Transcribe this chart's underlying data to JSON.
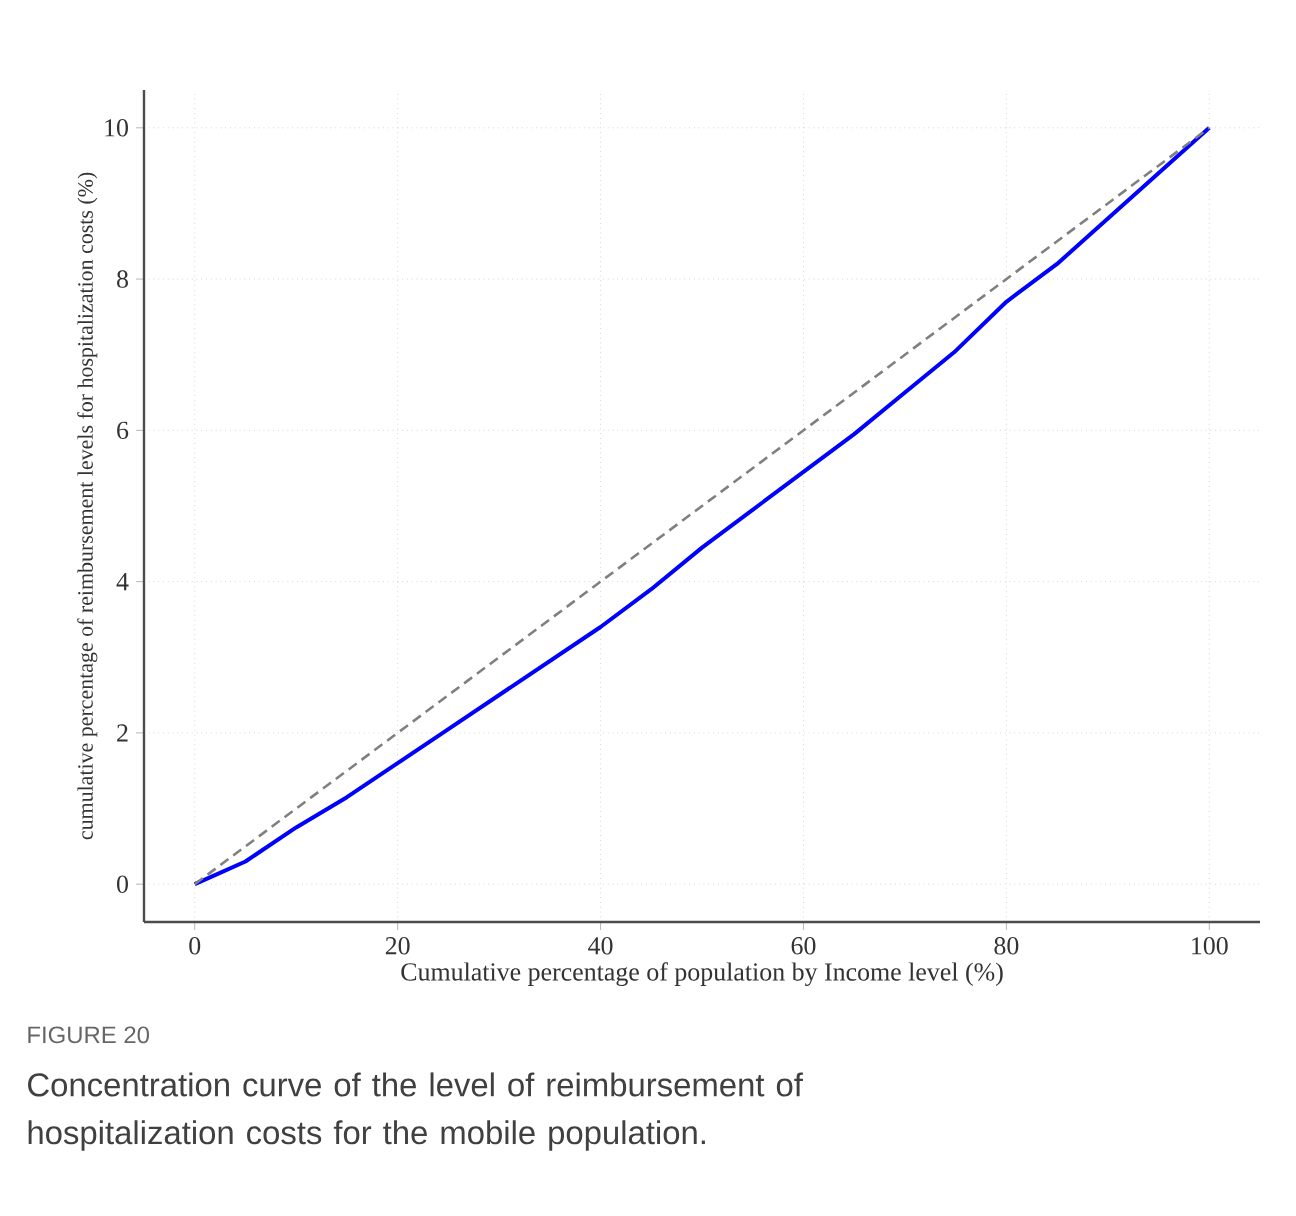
{
  "chart_data": {
    "type": "line",
    "xlabel": "Cumulative percentage of population by Income level (%)",
    "ylabel": "cumulative percentage of reimbursement levels for hospitalization costs (%)",
    "annotations": [
      "FIGURE 20",
      "Concentration curve of the level of reimbursement of hospitalization costs for the mobile population."
    ],
    "xlim": [
      -5,
      105
    ],
    "ylim": [
      -0.5,
      10.5
    ],
    "xticks": [
      0,
      20,
      40,
      60,
      80,
      100
    ],
    "yticks": [
      0,
      2,
      4,
      6,
      8,
      10
    ],
    "grid": true,
    "series": [
      {
        "color": "#0000ff",
        "line_style": "solid",
        "x": [
          0,
          2,
          5,
          10,
          15,
          20,
          25,
          30,
          35,
          40,
          45,
          50,
          55,
          60,
          65,
          70,
          75,
          80,
          85,
          90,
          95,
          100
        ],
        "values": [
          0,
          0.12,
          0.3,
          0.75,
          1.15,
          1.6,
          2.05,
          2.5,
          2.95,
          3.4,
          3.9,
          4.45,
          4.95,
          5.45,
          5.95,
          6.5,
          7.05,
          7.7,
          8.2,
          8.8,
          9.4,
          10
        ]
      },
      {
        "color": "#808080",
        "line_style": "dashed",
        "x": [
          0,
          100
        ],
        "values": [
          0,
          10
        ]
      }
    ]
  }
}
